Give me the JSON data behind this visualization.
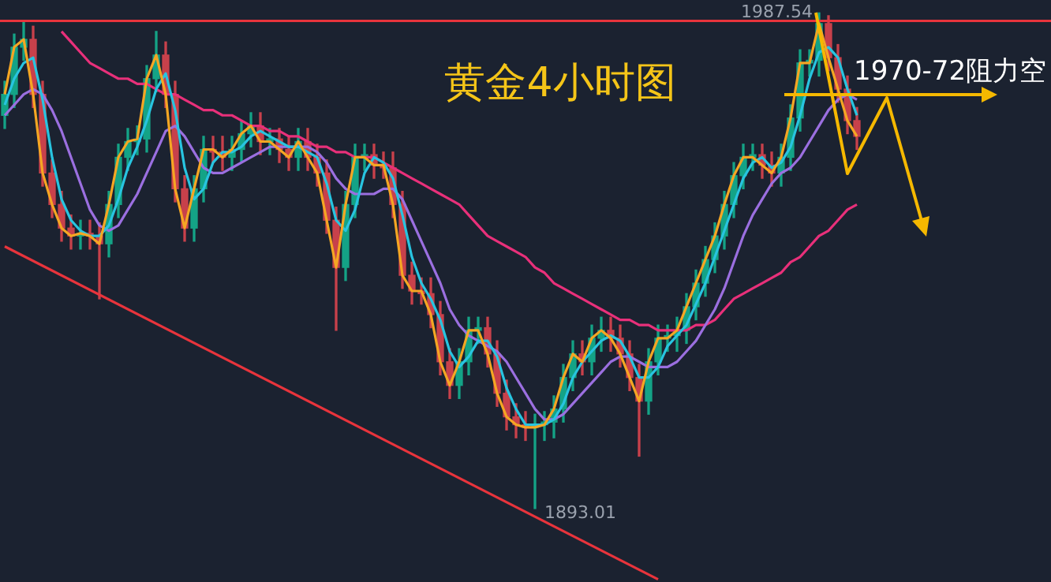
{
  "chart_data": {
    "type": "candlestick",
    "title": "黄金4小时图",
    "categories": [
      null,
      null,
      null,
      null,
      null,
      null,
      null,
      null,
      null,
      null,
      null,
      null,
      null,
      null,
      null,
      null,
      null,
      null,
      null,
      null,
      null,
      null,
      null,
      null,
      null,
      null,
      null,
      null,
      null,
      null,
      null,
      null,
      null,
      null,
      null,
      null,
      null,
      null,
      null,
      null,
      null,
      null,
      null,
      null,
      null,
      null,
      null,
      null,
      null,
      null,
      null,
      null,
      null,
      null,
      null,
      null,
      null,
      null,
      null,
      null,
      null,
      null,
      null,
      null,
      null,
      null,
      null,
      null,
      null,
      null,
      null,
      null,
      null,
      null,
      null,
      null,
      null,
      null,
      null,
      null,
      null,
      null,
      null,
      null,
      null,
      null,
      null,
      null,
      null,
      null,
      null
    ],
    "ohlc": [
      [
        1968,
        1974.5,
        1965.5,
        1972
      ],
      [
        1972,
        1983.5,
        1969.5,
        1981
      ],
      [
        1981,
        1986,
        1978.5,
        1982.5
      ],
      [
        1982.5,
        1985,
        1969.5,
        1972
      ],
      [
        1972,
        1974.5,
        1954.5,
        1957
      ],
      [
        1957,
        1959.5,
        1948.5,
        1951
      ],
      [
        1951,
        1953.5,
        1944,
        1946.5
      ],
      [
        1946.5,
        1949,
        1942.5,
        1945
      ],
      [
        1945,
        1948,
        1942.5,
        1945.5
      ],
      [
        1945.5,
        1948,
        1942.5,
        1945
      ],
      [
        1945,
        1947.5,
        1933,
        1943.5
      ],
      [
        1943.5,
        1953.5,
        1941,
        1951
      ],
      [
        1951,
        1962.5,
        1948.5,
        1960
      ],
      [
        1960,
        1965.5,
        1957.5,
        1963
      ],
      [
        1963,
        1966,
        1960.5,
        1963.5
      ],
      [
        1963.5,
        1977.5,
        1961,
        1975
      ],
      [
        1975,
        1984,
        1972.5,
        1979.5
      ],
      [
        1979.5,
        1982,
        1969.5,
        1972
      ],
      [
        1972,
        1974.5,
        1951.5,
        1954
      ],
      [
        1954,
        1956.5,
        1944,
        1946.5
      ],
      [
        1946.5,
        1956.5,
        1944,
        1954
      ],
      [
        1954,
        1964,
        1951.5,
        1961.5
      ],
      [
        1961.5,
        1964,
        1959,
        1961
      ],
      [
        1961,
        1964,
        1957.5,
        1960
      ],
      [
        1960,
        1964,
        1957.5,
        1961.5
      ],
      [
        1961.5,
        1967,
        1959,
        1964.5
      ],
      [
        1964.5,
        1968.5,
        1962,
        1966
      ],
      [
        1966,
        1968.5,
        1960.5,
        1963
      ],
      [
        1963,
        1965.5,
        1960.5,
        1963.5
      ],
      [
        1963.5,
        1965.5,
        1959,
        1961.5
      ],
      [
        1961.5,
        1964,
        1957.5,
        1960
      ],
      [
        1960,
        1965.5,
        1957.5,
        1963
      ],
      [
        1963,
        1965.5,
        1957.5,
        1960
      ],
      [
        1960,
        1962.5,
        1954.5,
        1957
      ],
      [
        1957,
        1959.5,
        1945.5,
        1948
      ],
      [
        1948,
        1950.5,
        1927,
        1939
      ],
      [
        1939,
        1953.5,
        1936.5,
        1951
      ],
      [
        1951,
        1962.5,
        1948.5,
        1960
      ],
      [
        1960,
        1962.5,
        1957.5,
        1960.5
      ],
      [
        1960.5,
        1962.5,
        1956,
        1958.5
      ],
      [
        1958.5,
        1961,
        1956,
        1958
      ],
      [
        1958,
        1961,
        1948.5,
        1951
      ],
      [
        1951,
        1953.5,
        1935,
        1937.5
      ],
      [
        1937.5,
        1940,
        1932,
        1934.5
      ],
      [
        1934.5,
        1937,
        1932,
        1934
      ],
      [
        1934,
        1937,
        1927.5,
        1930
      ],
      [
        1930,
        1932.5,
        1918.5,
        1921
      ],
      [
        1921,
        1923.5,
        1914,
        1916.5
      ],
      [
        1916.5,
        1923.5,
        1914,
        1921
      ],
      [
        1921,
        1929.5,
        1918.5,
        1927
      ],
      [
        1927,
        1929.5,
        1924.5,
        1927.5
      ],
      [
        1927.5,
        1929.5,
        1920,
        1922.5
      ],
      [
        1922.5,
        1925,
        1912.5,
        1915
      ],
      [
        1915,
        1917.5,
        1908,
        1910.5
      ],
      [
        1910.5,
        1913,
        1906.5,
        1909
      ],
      [
        1909,
        1911.5,
        1906,
        1908.5
      ],
      [
        1908.5,
        1911,
        1893.01,
        1909
      ],
      [
        1909,
        1911.5,
        1906,
        1909.5
      ],
      [
        1909.5,
        1914.5,
        1906.5,
        1912
      ],
      [
        1912,
        1920.5,
        1909.5,
        1918
      ],
      [
        1918,
        1925,
        1915.5,
        1922.5
      ],
      [
        1922.5,
        1925,
        1918.5,
        1921
      ],
      [
        1921,
        1928,
        1918.5,
        1925.5
      ],
      [
        1925.5,
        1929.5,
        1923,
        1927
      ],
      [
        1927,
        1929.5,
        1923,
        1925.5
      ],
      [
        1925.5,
        1928,
        1920,
        1922.5
      ],
      [
        1922.5,
        1925,
        1915.5,
        1918
      ],
      [
        1918,
        1920.5,
        1903,
        1913.5
      ],
      [
        1913.5,
        1923.5,
        1911,
        1921
      ],
      [
        1921,
        1928,
        1918.5,
        1925.5
      ],
      [
        1925.5,
        1928,
        1923,
        1926
      ],
      [
        1926,
        1929.5,
        1923,
        1927
      ],
      [
        1927,
        1934,
        1924.5,
        1931.5
      ],
      [
        1931.5,
        1938.5,
        1929,
        1936
      ],
      [
        1936,
        1943,
        1933.5,
        1940.5
      ],
      [
        1940.5,
        1947.5,
        1938,
        1945
      ],
      [
        1945,
        1953.5,
        1942.5,
        1951
      ],
      [
        1951,
        1959,
        1948.5,
        1956.5
      ],
      [
        1956.5,
        1962.5,
        1954,
        1960
      ],
      [
        1960,
        1962.5,
        1957.5,
        1960.5
      ],
      [
        1960.5,
        1962.5,
        1956,
        1958.5
      ],
      [
        1958.5,
        1961,
        1954.5,
        1957
      ],
      [
        1957,
        1962.5,
        1954.5,
        1960
      ],
      [
        1960,
        1970,
        1957.5,
        1967.5
      ],
      [
        1967.5,
        1980.5,
        1965,
        1978
      ],
      [
        1978,
        1980.5,
        1975.5,
        1978.5
      ],
      [
        1978.5,
        1987.54,
        1975.5,
        1985.5
      ],
      [
        1985.5,
        1987,
        1976.5,
        1979
      ],
      [
        1979,
        1981.5,
        1970.5,
        1973
      ],
      [
        1973,
        1975.5,
        1964.5,
        1967
      ],
      [
        1967,
        1969.5,
        1961.5,
        1964
      ]
    ],
    "series": [
      {
        "type": "line",
        "color": "#f5a623",
        "values": [
          1972,
          1981,
          1982.5,
          1972,
          1957,
          1951,
          1946.5,
          1945,
          1945.5,
          1945,
          1943.5,
          1951,
          1960,
          1963,
          1963.5,
          1975,
          1979.5,
          1972,
          1954,
          1946.5,
          1954,
          1961.5,
          1961.5,
          1960,
          1961.5,
          1964.5,
          1966,
          1963,
          1963,
          1961.5,
          1960,
          1963,
          1960,
          1957,
          1948,
          1939,
          1951,
          1960,
          1960,
          1958.5,
          1958.5,
          1951,
          1937.5,
          1934.5,
          1934.5,
          1930,
          1921,
          1916.5,
          1921,
          1927,
          1927,
          1922.5,
          1915,
          1910.5,
          1909,
          1908.5,
          1908.5,
          1909,
          1912,
          1918,
          1922.5,
          1921,
          1925.5,
          1927,
          1925.5,
          1922.5,
          1918,
          1913.5,
          1921,
          1925.5,
          1925.5,
          1927,
          1931.5,
          1936,
          1940.5,
          1945,
          1951,
          1956.5,
          1960,
          1960,
          1958.5,
          1957,
          1960,
          1967.5,
          1978,
          1978,
          1985.5,
          1979,
          1973,
          1967,
          1964
        ]
      },
      {
        "type": "line",
        "color": "#28c4e0",
        "values": [
          1970,
          1975,
          1978,
          1979,
          1971,
          1960,
          1952,
          1948,
          1946,
          1945,
          1945,
          1947,
          1952,
          1958,
          1962,
          1967,
          1973,
          1976,
          1969,
          1958,
          1952,
          1954,
          1959,
          1961,
          1961,
          1962,
          1964,
          1965,
          1964,
          1963,
          1962,
          1962,
          1961,
          1960,
          1955,
          1948,
          1946,
          1950,
          1957,
          1960,
          1959,
          1956,
          1949,
          1941,
          1936,
          1933,
          1929,
          1923,
          1920,
          1922,
          1925,
          1925,
          1922,
          1916,
          1912,
          1909,
          1909,
          1909,
          1910,
          1913,
          1918,
          1921,
          1923,
          1925,
          1926,
          1925,
          1922,
          1918,
          1918,
          1920,
          1924,
          1926,
          1928,
          1932,
          1936,
          1941,
          1946,
          1951,
          1956,
          1959,
          1960,
          1958,
          1959,
          1962,
          1968,
          1975,
          1980,
          1981,
          1979,
          1973,
          1968
        ]
      },
      {
        "type": "line",
        "color": "#9b6fe0",
        "values": [
          1968,
          1970,
          1972,
          1973,
          1972,
          1969,
          1965,
          1960,
          1955,
          1950,
          1947,
          1946,
          1947,
          1950,
          1953,
          1957,
          1961,
          1965,
          1966,
          1964,
          1961,
          1958,
          1957,
          1957,
          1958,
          1959,
          1960,
          1961,
          1962,
          1962,
          1962,
          1962,
          1962,
          1961,
          1959,
          1956,
          1954,
          1953,
          1953,
          1953,
          1954,
          1954,
          1952,
          1948,
          1944,
          1940,
          1936,
          1931,
          1928,
          1926,
          1925,
          1924,
          1923,
          1921,
          1918,
          1915,
          1912,
          1910,
          1910,
          1911,
          1913,
          1915,
          1917,
          1919,
          1921,
          1922,
          1922,
          1921,
          1920,
          1920,
          1920,
          1921,
          1923,
          1925,
          1928,
          1931,
          1935,
          1940,
          1945,
          1949,
          1952,
          1955,
          1957,
          1958,
          1960,
          1963,
          1966,
          1969,
          1971,
          1972,
          1971
        ]
      },
      {
        "type": "line",
        "color": "#e8307a",
        "values": [
          null,
          null,
          null,
          null,
          null,
          null,
          1984,
          1982,
          1980,
          1978,
          1977,
          1976,
          1975,
          1975,
          1974,
          1974,
          1973,
          1972,
          1972,
          1971,
          1970,
          1969,
          1969,
          1968,
          1968,
          1967,
          1966,
          1966,
          1965,
          1965,
          1964,
          1964,
          1963,
          1962,
          1962,
          1961,
          1961,
          1960,
          1960,
          1960,
          1959,
          1958,
          1957,
          1956,
          1955,
          1954,
          1953,
          1952,
          1951,
          1949,
          1947,
          1945,
          1944,
          1943,
          1942,
          1941,
          1939,
          1938,
          1936,
          1935,
          1934,
          1933,
          1932,
          1931,
          1930,
          1929,
          1929,
          1928,
          1928,
          1927,
          1927,
          1927,
          1927,
          1928,
          1928,
          1929,
          1931,
          1933,
          1934,
          1935,
          1936,
          1937,
          1938,
          1940,
          1941,
          1943,
          1945,
          1946,
          1948,
          1950,
          1951
        ]
      },
      {
        "type": "line",
        "color": "#e8343c",
        "values": [
          1943,
          null,
          null,
          null,
          null,
          null,
          null,
          null,
          null,
          null,
          null,
          null,
          null,
          null,
          null,
          null,
          null,
          null,
          null,
          null,
          null,
          null,
          null,
          null,
          null,
          null,
          null,
          null,
          null,
          null,
          null,
          null,
          null,
          null,
          null,
          null,
          null,
          null,
          null,
          null,
          null,
          null,
          null,
          null,
          null,
          null,
          null,
          null,
          null,
          null,
          null,
          null,
          null,
          null,
          null,
          null,
          null,
          null,
          null,
          null,
          null,
          null,
          null,
          null,
          null,
          null,
          null,
          null,
          null,
          1879.5,
          null,
          null,
          null,
          null,
          null,
          null,
          null,
          null,
          null,
          null,
          null,
          null,
          null,
          null,
          null,
          null,
          null,
          null,
          null,
          null,
          null
        ]
      }
    ],
    "ylim": [
      1879,
      1990
    ],
    "ref_lines": [
      {
        "axis": "y",
        "value": 1986,
        "color": "#e8343c"
      }
    ],
    "annotations": [
      "1987.54",
      "1893.01",
      "1970-72阻力空"
    ],
    "tick_labels": false,
    "legend": false
  }
}
